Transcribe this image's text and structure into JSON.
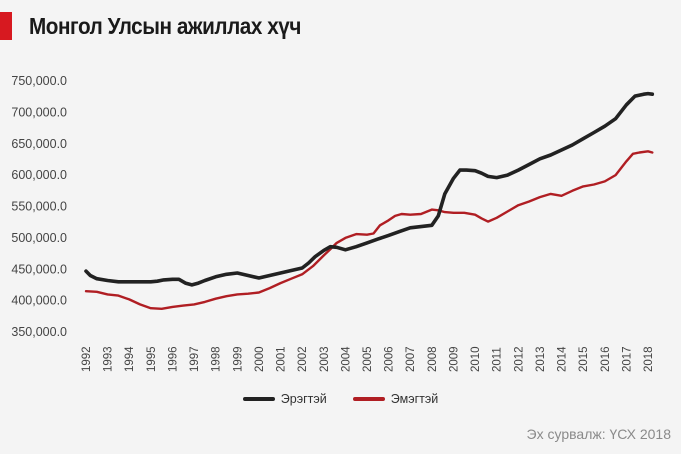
{
  "title": "Монгол Улсын ажиллах хүч",
  "source": "Эх сурвалж: ҮСХ 2018",
  "colors": {
    "accent": "#d71920",
    "male": "#222222",
    "female": "#b01e23"
  },
  "chart_data": {
    "type": "line",
    "title": "Монгол Улсын ажиллах хүч",
    "xlabel": "",
    "ylabel": "",
    "ylim": [
      350000,
      750000
    ],
    "xlim": [
      1992,
      2018
    ],
    "grid": false,
    "legend_position": "bottom",
    "y_ticks": [
      "350,000.0",
      "400,000.0",
      "450,000.0",
      "500,000.0",
      "550,000.0",
      "600,000.0",
      "650,000.0",
      "700,000.0",
      "750,000.0"
    ],
    "x_ticks": [
      "1992",
      "1993",
      "1994",
      "1995",
      "1996",
      "1997",
      "1998",
      "1999",
      "2000",
      "2001",
      "2002",
      "2003",
      "2004",
      "2005",
      "2006",
      "2007",
      "2008",
      "2009",
      "2010",
      "2011",
      "2012",
      "2013",
      "2014",
      "2015",
      "2016",
      "2017",
      "2018"
    ],
    "series": [
      {
        "name": "Эрэгтэй",
        "color": "#222222",
        "points": [
          [
            1992,
            447000
          ],
          [
            1992.2,
            440000
          ],
          [
            1992.5,
            435000
          ],
          [
            1993,
            432000
          ],
          [
            1993.5,
            430000
          ],
          [
            1994,
            430000
          ],
          [
            1995,
            430000
          ],
          [
            1995.3,
            431000
          ],
          [
            1995.6,
            433000
          ],
          [
            1996,
            434000
          ],
          [
            1996.3,
            434000
          ],
          [
            1996.6,
            428000
          ],
          [
            1996.9,
            425000
          ],
          [
            1997.2,
            428000
          ],
          [
            1997.5,
            432000
          ],
          [
            1998,
            438000
          ],
          [
            1998.5,
            442000
          ],
          [
            1999,
            444000
          ],
          [
            1999.5,
            440000
          ],
          [
            2000,
            436000
          ],
          [
            2000.5,
            440000
          ],
          [
            2001,
            444000
          ],
          [
            2001.5,
            448000
          ],
          [
            2002,
            452000
          ],
          [
            2002.3,
            460000
          ],
          [
            2002.6,
            470000
          ],
          [
            2003,
            480000
          ],
          [
            2003.3,
            486000
          ],
          [
            2003.6,
            485000
          ],
          [
            2004,
            481000
          ],
          [
            2004.5,
            486000
          ],
          [
            2005,
            492000
          ],
          [
            2005.5,
            498000
          ],
          [
            2006,
            504000
          ],
          [
            2006.5,
            510000
          ],
          [
            2007,
            516000
          ],
          [
            2007.5,
            518000
          ],
          [
            2008,
            520000
          ],
          [
            2008.3,
            535000
          ],
          [
            2008.6,
            570000
          ],
          [
            2009,
            595000
          ],
          [
            2009.3,
            608000
          ],
          [
            2009.6,
            608000
          ],
          [
            2010,
            607000
          ],
          [
            2010.3,
            603000
          ],
          [
            2010.6,
            598000
          ],
          [
            2011,
            596000
          ],
          [
            2011.5,
            600000
          ],
          [
            2012,
            608000
          ],
          [
            2012.5,
            617000
          ],
          [
            2013,
            626000
          ],
          [
            2013.5,
            632000
          ],
          [
            2014,
            640000
          ],
          [
            2014.5,
            648000
          ],
          [
            2015,
            658000
          ],
          [
            2015.5,
            668000
          ],
          [
            2016,
            678000
          ],
          [
            2016.5,
            690000
          ],
          [
            2017,
            712000
          ],
          [
            2017.4,
            726000
          ],
          [
            2017.8,
            729000
          ],
          [
            2018,
            730000
          ],
          [
            2018.2,
            729000
          ]
        ]
      },
      {
        "name": "Эмэгтэй",
        "color": "#b01e23",
        "points": [
          [
            1992,
            415000
          ],
          [
            1992.5,
            414000
          ],
          [
            1993,
            410000
          ],
          [
            1993.5,
            408000
          ],
          [
            1994,
            402000
          ],
          [
            1994.5,
            394000
          ],
          [
            1995,
            388000
          ],
          [
            1995.5,
            387000
          ],
          [
            1996,
            390000
          ],
          [
            1996.5,
            392000
          ],
          [
            1997,
            394000
          ],
          [
            1997.5,
            398000
          ],
          [
            1998,
            403000
          ],
          [
            1998.5,
            407000
          ],
          [
            1999,
            410000
          ],
          [
            1999.5,
            411000
          ],
          [
            2000,
            413000
          ],
          [
            2000.5,
            420000
          ],
          [
            2001,
            428000
          ],
          [
            2001.5,
            435000
          ],
          [
            2002,
            442000
          ],
          [
            2002.5,
            455000
          ],
          [
            2003,
            472000
          ],
          [
            2003.3,
            482000
          ],
          [
            2003.6,
            492000
          ],
          [
            2004,
            500000
          ],
          [
            2004.5,
            506000
          ],
          [
            2005,
            505000
          ],
          [
            2005.3,
            507000
          ],
          [
            2005.6,
            520000
          ],
          [
            2006,
            528000
          ],
          [
            2006.3,
            535000
          ],
          [
            2006.6,
            538000
          ],
          [
            2007,
            537000
          ],
          [
            2007.5,
            538000
          ],
          [
            2008,
            545000
          ],
          [
            2008.3,
            544000
          ],
          [
            2008.6,
            541000
          ],
          [
            2009,
            540000
          ],
          [
            2009.5,
            540000
          ],
          [
            2010,
            537000
          ],
          [
            2010.3,
            531000
          ],
          [
            2010.6,
            526000
          ],
          [
            2011,
            532000
          ],
          [
            2011.5,
            542000
          ],
          [
            2012,
            552000
          ],
          [
            2012.5,
            558000
          ],
          [
            2013,
            565000
          ],
          [
            2013.5,
            570000
          ],
          [
            2014,
            567000
          ],
          [
            2014.5,
            575000
          ],
          [
            2015,
            582000
          ],
          [
            2015.5,
            585000
          ],
          [
            2016,
            590000
          ],
          [
            2016.5,
            600000
          ],
          [
            2017,
            622000
          ],
          [
            2017.3,
            634000
          ],
          [
            2017.6,
            636000
          ],
          [
            2018,
            638000
          ],
          [
            2018.2,
            636000
          ]
        ]
      }
    ]
  }
}
